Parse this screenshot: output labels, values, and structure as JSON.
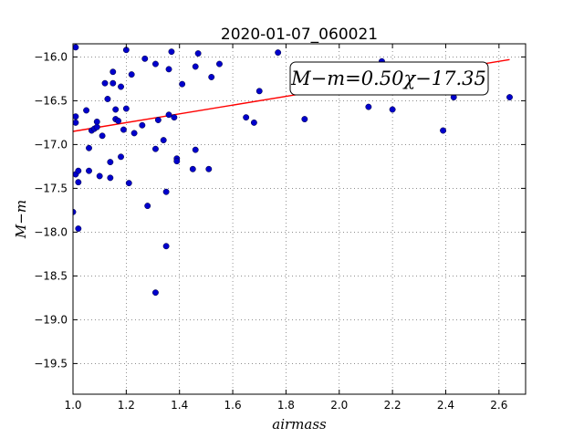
{
  "chart_data": {
    "type": "scatter",
    "title": "2020-01-07_060021",
    "xlabel": "airmass",
    "ylabel": "M−m",
    "xlim": [
      1.0,
      2.7
    ],
    "ylim": [
      -19.85,
      -15.85
    ],
    "y_inverted": true,
    "grid": true,
    "x_ticks": [
      1.0,
      1.2,
      1.4,
      1.6,
      1.8,
      2.0,
      2.2,
      2.4,
      2.6
    ],
    "x_tick_labels": [
      "1.0",
      "1.2",
      "1.4",
      "1.6",
      "1.8",
      "2.0",
      "2.2",
      "2.4",
      "2.6"
    ],
    "y_ticks": [
      -16.0,
      -16.5,
      -17.0,
      -17.5,
      -18.0,
      -18.5,
      -19.0,
      -19.5
    ],
    "y_tick_labels": [
      "−16.0",
      "−16.5",
      "−17.0",
      "−17.5",
      "−18.0",
      "−18.5",
      "−19.0",
      "−19.5"
    ],
    "fit_annotation": "M−m=0.50χ−17.35",
    "fit_line": {
      "slope": 0.5,
      "intercept": -17.35,
      "x_range": [
        1.0,
        2.64
      ],
      "color": "#ff0000"
    },
    "point_color": "#0000cc",
    "points": [
      [
        1.0,
        -17.77
      ],
      [
        1.01,
        -16.75
      ],
      [
        1.01,
        -16.68
      ],
      [
        1.01,
        -17.34
      ],
      [
        1.01,
        -15.89
      ],
      [
        1.02,
        -17.3
      ],
      [
        1.02,
        -17.43
      ],
      [
        1.02,
        -17.96
      ],
      [
        1.05,
        -16.61
      ],
      [
        1.06,
        -17.04
      ],
      [
        1.06,
        -17.3
      ],
      [
        1.07,
        -16.84
      ],
      [
        1.08,
        -16.82
      ],
      [
        1.09,
        -16.74
      ],
      [
        1.09,
        -16.8
      ],
      [
        1.1,
        -17.36
      ],
      [
        1.11,
        -16.9
      ],
      [
        1.12,
        -16.3
      ],
      [
        1.13,
        -16.48
      ],
      [
        1.14,
        -17.2
      ],
      [
        1.14,
        -17.38
      ],
      [
        1.15,
        -16.3
      ],
      [
        1.15,
        -16.17
      ],
      [
        1.16,
        -16.6
      ],
      [
        1.16,
        -16.71
      ],
      [
        1.17,
        -16.73
      ],
      [
        1.18,
        -16.34
      ],
      [
        1.18,
        -17.14
      ],
      [
        1.19,
        -16.83
      ],
      [
        1.2,
        -16.59
      ],
      [
        1.2,
        -15.92
      ],
      [
        1.21,
        -17.44
      ],
      [
        1.22,
        -16.2
      ],
      [
        1.23,
        -16.87
      ],
      [
        1.26,
        -16.78
      ],
      [
        1.27,
        -16.02
      ],
      [
        1.28,
        -17.7
      ],
      [
        1.31,
        -17.05
      ],
      [
        1.31,
        -16.08
      ],
      [
        1.31,
        -18.69
      ],
      [
        1.32,
        -16.72
      ],
      [
        1.34,
        -16.95
      ],
      [
        1.35,
        -17.54
      ],
      [
        1.35,
        -18.16
      ],
      [
        1.36,
        -16.66
      ],
      [
        1.36,
        -16.14
      ],
      [
        1.37,
        -15.94
      ],
      [
        1.38,
        -16.69
      ],
      [
        1.39,
        -17.16
      ],
      [
        1.39,
        -17.19
      ],
      [
        1.41,
        -16.31
      ],
      [
        1.45,
        -17.28
      ],
      [
        1.46,
        -17.06
      ],
      [
        1.46,
        -16.11
      ],
      [
        1.47,
        -15.96
      ],
      [
        1.51,
        -17.28
      ],
      [
        1.52,
        -16.23
      ],
      [
        1.55,
        -16.08
      ],
      [
        1.65,
        -16.69
      ],
      [
        1.68,
        -16.75
      ],
      [
        1.7,
        -16.39
      ],
      [
        1.77,
        -15.95
      ],
      [
        1.87,
        -16.71
      ],
      [
        2.11,
        -16.57
      ],
      [
        2.16,
        -16.05
      ],
      [
        2.2,
        -16.6
      ],
      [
        2.39,
        -16.84
      ],
      [
        2.43,
        -16.46
      ],
      [
        2.64,
        -16.46
      ]
    ]
  }
}
